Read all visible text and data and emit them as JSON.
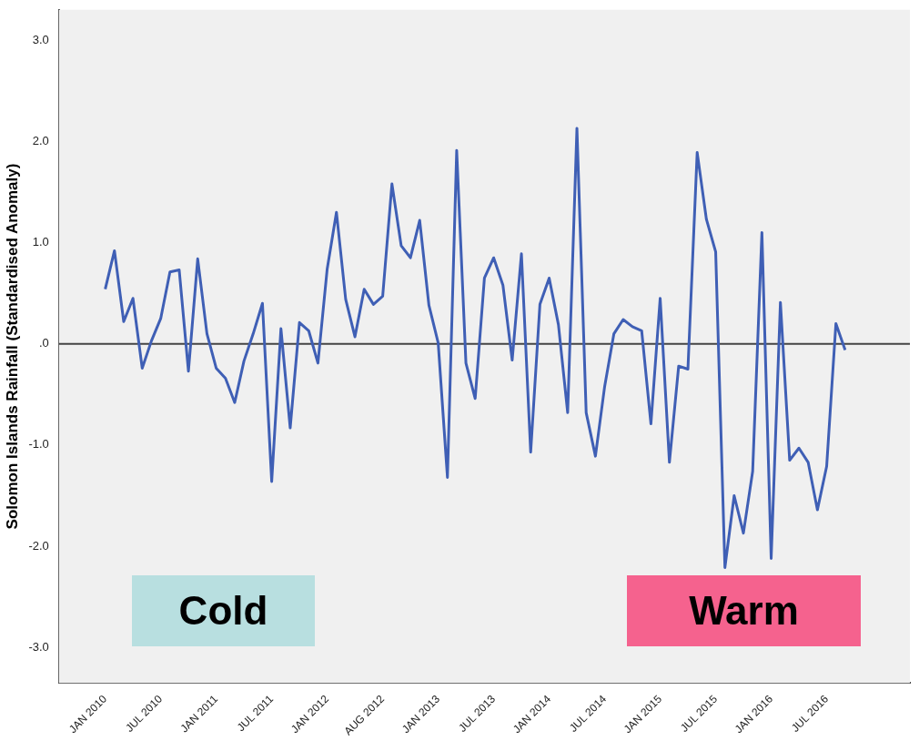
{
  "chart_data": {
    "type": "line",
    "ylabel": "Solomon Islands Rainfall (Standardised Anomaly)",
    "categories": [
      "JAN 2010",
      null,
      null,
      null,
      null,
      null,
      "JUL 2010",
      null,
      null,
      null,
      null,
      null,
      "JAN 2011",
      null,
      null,
      null,
      null,
      null,
      "JUL 2011",
      null,
      null,
      null,
      null,
      null,
      "JAN 2012",
      null,
      null,
      null,
      null,
      null,
      "AUG 2012",
      null,
      null,
      null,
      null,
      null,
      "JAN 2013",
      null,
      null,
      null,
      null,
      null,
      "JUL 2013",
      null,
      null,
      null,
      null,
      null,
      "JAN 2014",
      null,
      null,
      null,
      null,
      null,
      "JUL 2014",
      null,
      null,
      null,
      null,
      null,
      "JAN 2015",
      null,
      null,
      null,
      null,
      null,
      "JUL 2015",
      null,
      null,
      null,
      null,
      null,
      "JAN 2016",
      null,
      null,
      null,
      null,
      null,
      "JUL 2016",
      null,
      null
    ],
    "series": [
      {
        "color": "#3f5fb5",
        "values": [
          0.54,
          0.92,
          0.22,
          0.45,
          -0.24,
          0.03,
          0.25,
          0.71,
          0.73,
          -0.27,
          0.84,
          0.1,
          -0.24,
          -0.34,
          -0.58,
          -0.17,
          0.1,
          0.4,
          -1.36,
          0.15,
          -0.83,
          0.21,
          0.13,
          -0.19,
          0.74,
          1.3,
          0.44,
          0.07,
          0.54,
          0.39,
          0.47,
          1.58,
          0.97,
          0.85,
          1.22,
          0.38,
          0.01,
          -1.32,
          1.91,
          -0.19,
          -0.54,
          0.65,
          0.85,
          0.58,
          -0.16,
          0.89,
          -1.07,
          0.39,
          0.65,
          0.19,
          -0.68,
          2.13,
          -0.68,
          -1.11,
          -0.42,
          0.1,
          0.24,
          0.17,
          0.13,
          -0.79,
          0.45,
          -1.17,
          -0.22,
          -0.25,
          1.89,
          1.23,
          0.91,
          -2.21,
          -1.5,
          -1.87,
          -1.26,
          1.1,
          -2.12,
          0.41,
          -1.15,
          -1.03,
          -1.17,
          -1.64,
          -1.21,
          0.2,
          -0.06
        ]
      }
    ],
    "ylim": [
      -3.35,
      3.3
    ],
    "yticks": [
      {
        "value": -3,
        "label": "-3.0"
      },
      {
        "value": -2,
        "label": "-2.0"
      },
      {
        "value": -1,
        "label": "-1.0"
      },
      {
        "value": 0,
        "label": ".0"
      },
      {
        "value": 1,
        "label": "1.0"
      },
      {
        "value": 2,
        "label": "2.0"
      },
      {
        "value": 3,
        "label": "3.0"
      }
    ],
    "ref_lines": [
      {
        "axis": "y",
        "value": 0,
        "color": "#444444"
      }
    ],
    "grid": false,
    "legend": false,
    "marker": "none",
    "line_style": "solid",
    "annotations": [
      "Cold",
      "Warm"
    ]
  }
}
